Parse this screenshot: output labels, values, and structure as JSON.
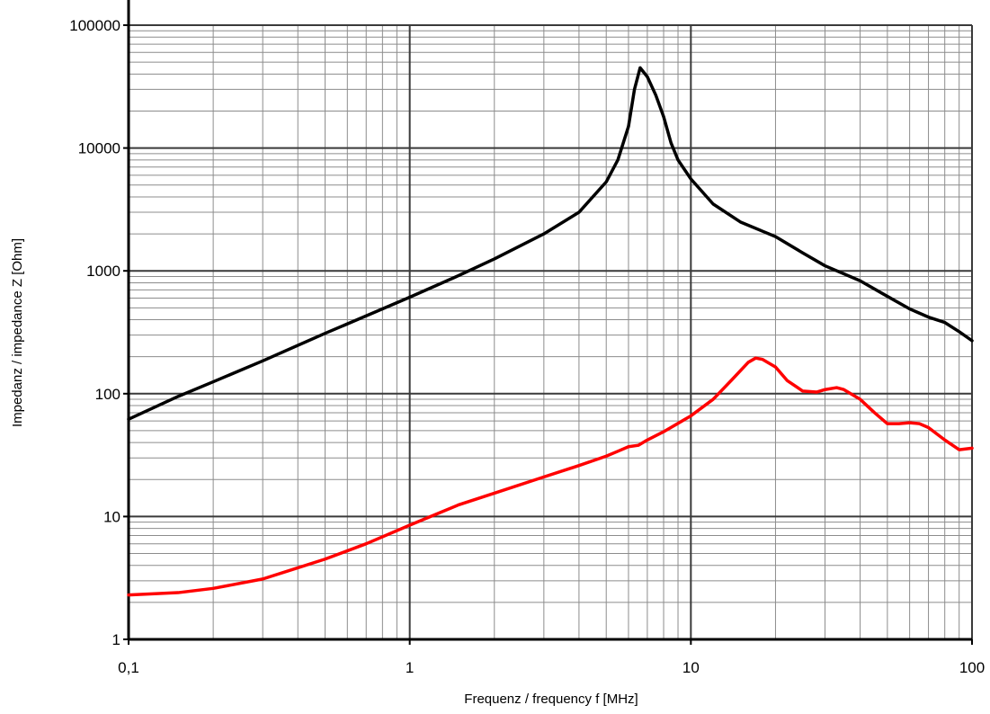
{
  "chart_data": {
    "type": "line",
    "title": "",
    "xlabel": "Frequenz / frequency f [MHz]",
    "ylabel": "Impedanz / impedance Z [Ohm]",
    "xscale": "log",
    "yscale": "log",
    "xlim": [
      0.1,
      100
    ],
    "ylim": [
      1,
      100000
    ],
    "grid": true,
    "legend": "none",
    "x_tick_labels": [
      "0,1",
      "1",
      "10",
      "100"
    ],
    "x_tick_values": [
      0.1,
      1,
      10,
      100
    ],
    "y_tick_labels": [
      "1",
      "10",
      "100",
      "1000",
      "10000",
      "100000"
    ],
    "y_tick_values": [
      1,
      10,
      100,
      1000,
      10000,
      100000
    ],
    "series": [
      {
        "color": "#000000",
        "x": [
          0.1,
          0.15,
          0.2,
          0.3,
          0.5,
          0.7,
          1,
          1.5,
          2,
          3,
          4,
          5,
          5.5,
          6,
          6.3,
          6.6,
          7,
          7.5,
          8,
          8.5,
          9,
          10,
          12,
          15,
          18,
          20,
          25,
          30,
          40,
          50,
          60,
          70,
          80,
          90,
          100
        ],
        "y": [
          62,
          95,
          125,
          185,
          310,
          430,
          610,
          920,
          1250,
          2000,
          3000,
          5300,
          8000,
          15000,
          30000,
          45000,
          38000,
          27000,
          18000,
          11000,
          8000,
          5600,
          3500,
          2500,
          2100,
          1900,
          1400,
          1100,
          830,
          620,
          490,
          420,
          380,
          320,
          270
        ]
      },
      {
        "color": "#ff0000",
        "x": [
          0.1,
          0.15,
          0.2,
          0.3,
          0.5,
          0.7,
          1,
          1.5,
          2,
          3,
          4,
          5,
          5.5,
          6,
          6.5,
          7,
          8,
          10,
          12,
          14,
          16,
          17,
          18,
          20,
          22,
          25,
          28,
          30,
          33,
          35,
          40,
          45,
          50,
          55,
          60,
          65,
          70,
          80,
          90,
          100
        ],
        "y": [
          2.3,
          2.4,
          2.6,
          3.1,
          4.5,
          6.0,
          8.5,
          12.5,
          15.5,
          21,
          26,
          31,
          34,
          37,
          38,
          42,
          49,
          66,
          90,
          130,
          180,
          195,
          190,
          165,
          128,
          105,
          103,
          108,
          112,
          108,
          90,
          70,
          57,
          57,
          58,
          57,
          53,
          42,
          35,
          36
        ]
      }
    ]
  }
}
